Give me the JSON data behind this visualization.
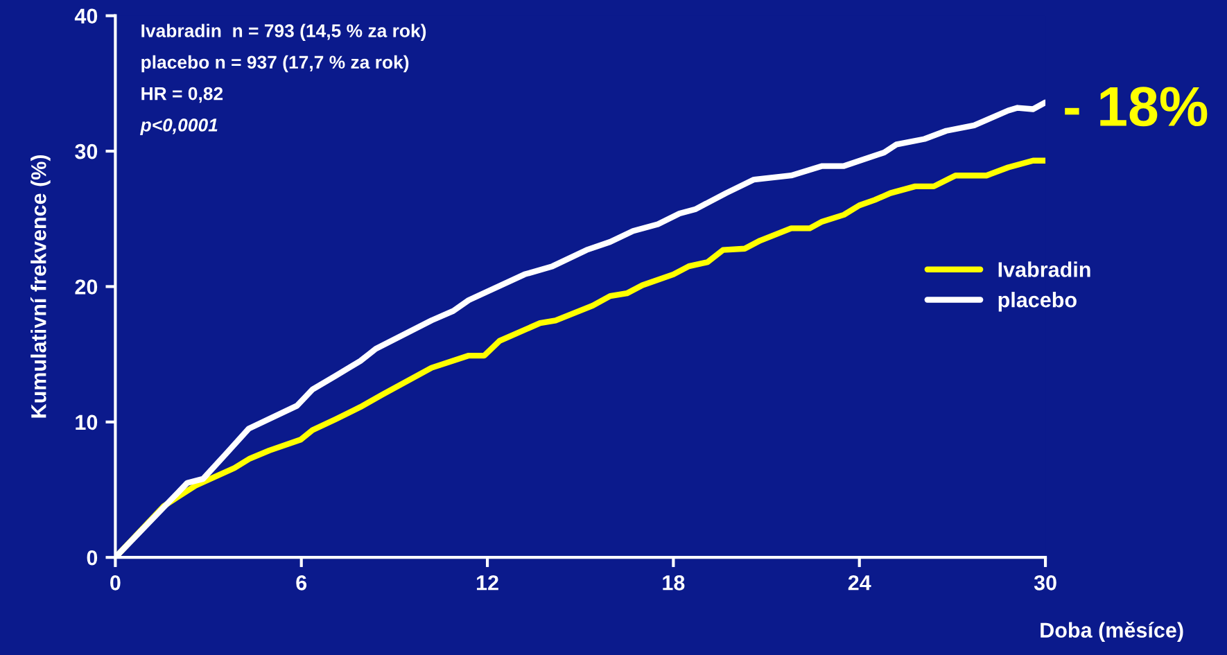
{
  "chart_data": {
    "type": "line",
    "xlabel": "Doba (měsíce)",
    "ylabel": "Kumulativní frekvence (%)",
    "xlim": [
      0,
      30
    ],
    "xticks": [
      0,
      6,
      12,
      18,
      24,
      30
    ],
    "ylim": [
      0,
      40
    ],
    "yticks": [
      0,
      10,
      20,
      30,
      40
    ],
    "grid": false,
    "legend": "right",
    "line_style": "solid",
    "marker": "none",
    "annotations": [
      "Ivabradin  n = 793 (14,5 % za rok)",
      "placebo n = 937 (17,7 % za rok)",
      "HR = 0,82",
      "p<0,0001",
      "- 18%"
    ],
    "series": [
      {
        "name": "Ivabradin",
        "color": "#ffff00",
        "x": [
          0,
          1.57,
          2.58,
          3.84,
          4.34,
          4.97,
          5.98,
          6.36,
          7.1,
          7.9,
          8.6,
          10.2,
          11.4,
          11.9,
          12.4,
          13.7,
          14.2,
          15.4,
          15.96,
          16.5,
          17.0,
          18.0,
          18.5,
          19.1,
          19.6,
          20.3,
          20.8,
          21.8,
          22.4,
          22.8,
          23.5,
          24.0,
          24.5,
          25.0,
          25.8,
          26.4,
          27.1,
          28.1,
          28.8,
          29.6,
          30
        ],
        "values": [
          0,
          3.8,
          5.3,
          6.6,
          7.3,
          7.9,
          8.7,
          9.4,
          10.2,
          11.1,
          12.0,
          14.0,
          14.9,
          14.9,
          16.0,
          17.3,
          17.5,
          18.6,
          19.3,
          19.5,
          20.1,
          20.9,
          21.5,
          21.8,
          22.7,
          22.8,
          23.4,
          24.3,
          24.3,
          24.8,
          25.3,
          26.0,
          26.4,
          26.9,
          27.4,
          27.4,
          28.2,
          28.2,
          28.8,
          29.3,
          29.3
        ]
      },
      {
        "name": "placebo",
        "color": "#ffffff",
        "x": [
          0,
          2.32,
          2.83,
          3.59,
          4.3,
          5.86,
          6.36,
          7.1,
          7.9,
          8.4,
          10.2,
          10.9,
          11.4,
          13.2,
          14.1,
          15.2,
          15.96,
          16.7,
          17.5,
          18.2,
          18.7,
          19.7,
          20.6,
          21.8,
          22.8,
          23.5,
          24.8,
          25.2,
          26.1,
          26.8,
          27.7,
          28.8,
          29.1,
          29.6,
          30
        ],
        "values": [
          0,
          5.5,
          5.8,
          7.7,
          9.5,
          11.2,
          12.4,
          13.4,
          14.5,
          15.4,
          17.5,
          18.2,
          19.0,
          20.9,
          21.5,
          22.7,
          23.3,
          24.1,
          24.6,
          25.4,
          25.7,
          26.9,
          27.9,
          28.2,
          28.9,
          28.9,
          29.9,
          30.5,
          30.9,
          31.5,
          31.9,
          33.0,
          33.2,
          33.1,
          33.6
        ]
      }
    ]
  }
}
